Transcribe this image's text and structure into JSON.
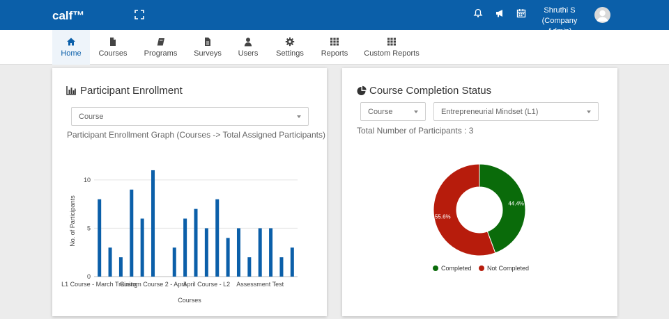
{
  "header": {
    "logo": "calf™",
    "user_name": "Shruthi S",
    "user_role": "(Company Admin)",
    "icons": [
      "expand-icon",
      "bell-icon",
      "megaphone-icon",
      "calendar-icon"
    ]
  },
  "nav": [
    {
      "label": "Home",
      "icon": "home-icon",
      "active": true
    },
    {
      "label": "Courses",
      "icon": "file-icon"
    },
    {
      "label": "Programs",
      "icon": "book-icon"
    },
    {
      "label": "Surveys",
      "icon": "document-icon"
    },
    {
      "label": "Users",
      "icon": "user-icon"
    },
    {
      "label": "Settings",
      "icon": "gear-icon"
    },
    {
      "label": "Reports",
      "icon": "grid-icon"
    },
    {
      "label": "Custom Reports",
      "icon": "grid-icon"
    }
  ],
  "enrollment": {
    "title": "Participant Enrollment",
    "select_value": "Course",
    "graph_title": "Participant Enrollment Graph (Courses -> Total Assigned Participants)"
  },
  "completion": {
    "title": "Course Completion Status",
    "select_type": "Course",
    "select_course": "Entrepreneurial Mindset (L1)",
    "total_label": "Total Number of Participants : 3"
  },
  "colors": {
    "brand": "#0b5fa9",
    "bar": "#0b5fa9",
    "completed": "#0a6b0a",
    "not_completed": "#b71c0c"
  },
  "chart_data": [
    {
      "type": "bar",
      "xlabel": "Courses",
      "ylabel": "No. of Participants",
      "ylim": [
        0,
        11.5
      ],
      "yticks": [
        0,
        5,
        10
      ],
      "grid": true,
      "xtick_labels": [
        "L1 Course - March Training",
        "Custom Course 2 - April",
        "April Course - L2",
        "Assessment Test"
      ],
      "values": [
        8,
        3,
        2,
        9,
        6,
        11,
        0,
        3,
        6,
        7,
        5,
        8,
        4,
        5,
        2,
        5,
        5,
        2,
        3
      ]
    },
    {
      "type": "pie",
      "donut": true,
      "legend_position": "bottom",
      "slices": [
        {
          "name": "Completed",
          "value": 44.4,
          "label": "44.4%"
        },
        {
          "name": "Not Completed",
          "value": 55.6,
          "label": "55.6%"
        }
      ]
    }
  ]
}
